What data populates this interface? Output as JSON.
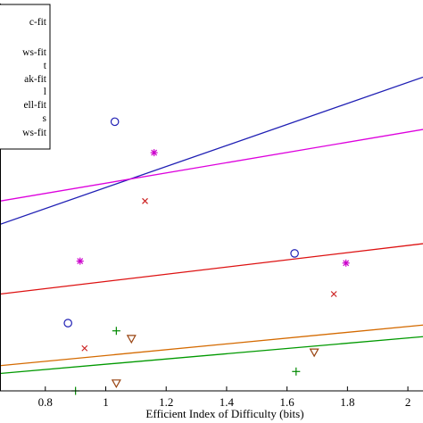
{
  "chart_data": {
    "type": "scatter",
    "title": "",
    "xlabel": "Efficient Index of Difficulty (bits)",
    "ylabel": "",
    "xlim": [
      0.65,
      2.05
    ],
    "ylim": [
      0,
      1
    ],
    "x_ticks": [
      0.8,
      1,
      1.2,
      1.4,
      1.6,
      1.8,
      2
    ],
    "x_tick_labels": [
      "0.8",
      "1",
      "1.2",
      "1.4",
      "1.6",
      "1.8",
      "2"
    ],
    "grid": false,
    "legend_position": "top-left",
    "legend_entries": [
      "c-fit",
      "",
      "ws-fit",
      "t",
      "ak-fit",
      "l",
      "ell-fit",
      "s",
      "ws-fit"
    ],
    "series": [
      {
        "marker": "circle",
        "color": "#1f1fb4",
        "points": [
          [
            1.03,
            0.695
          ],
          [
            0.875,
            0.175
          ],
          [
            1.625,
            0.355
          ]
        ]
      },
      {
        "marker": "asterisk",
        "color": "#cc00cc",
        "points": [
          [
            1.16,
            0.615
          ],
          [
            0.915,
            0.335
          ],
          [
            1.795,
            0.33
          ]
        ]
      },
      {
        "marker": "x",
        "color": "#cc2222",
        "points": [
          [
            1.13,
            0.49
          ],
          [
            0.93,
            0.11
          ],
          [
            1.755,
            0.25
          ]
        ]
      },
      {
        "marker": "plus",
        "color": "#008800",
        "points": [
          [
            1.035,
            0.155
          ],
          [
            0.9,
            0.0
          ],
          [
            1.63,
            0.05
          ]
        ]
      },
      {
        "marker": "triangle-down",
        "color": "#994411",
        "points": [
          [
            1.085,
            0.135
          ],
          [
            1.035,
            0.02
          ],
          [
            1.69,
            0.1
          ]
        ]
      }
    ],
    "fit_lines": [
      {
        "color": "#1f1fb4",
        "x": [
          0.65,
          2.05
        ],
        "y": [
          0.43,
          0.81
        ]
      },
      {
        "color": "#dd00dd",
        "x": [
          0.65,
          2.05
        ],
        "y": [
          0.49,
          0.675
        ]
      },
      {
        "color": "#dd1111",
        "x": [
          0.65,
          2.05
        ],
        "y": [
          0.25,
          0.38
        ]
      },
      {
        "color": "#d46a00",
        "x": [
          0.65,
          2.05
        ],
        "y": [
          0.065,
          0.17
        ]
      },
      {
        "color": "#009900",
        "x": [
          0.65,
          2.05
        ],
        "y": [
          0.045,
          0.14
        ]
      }
    ]
  }
}
